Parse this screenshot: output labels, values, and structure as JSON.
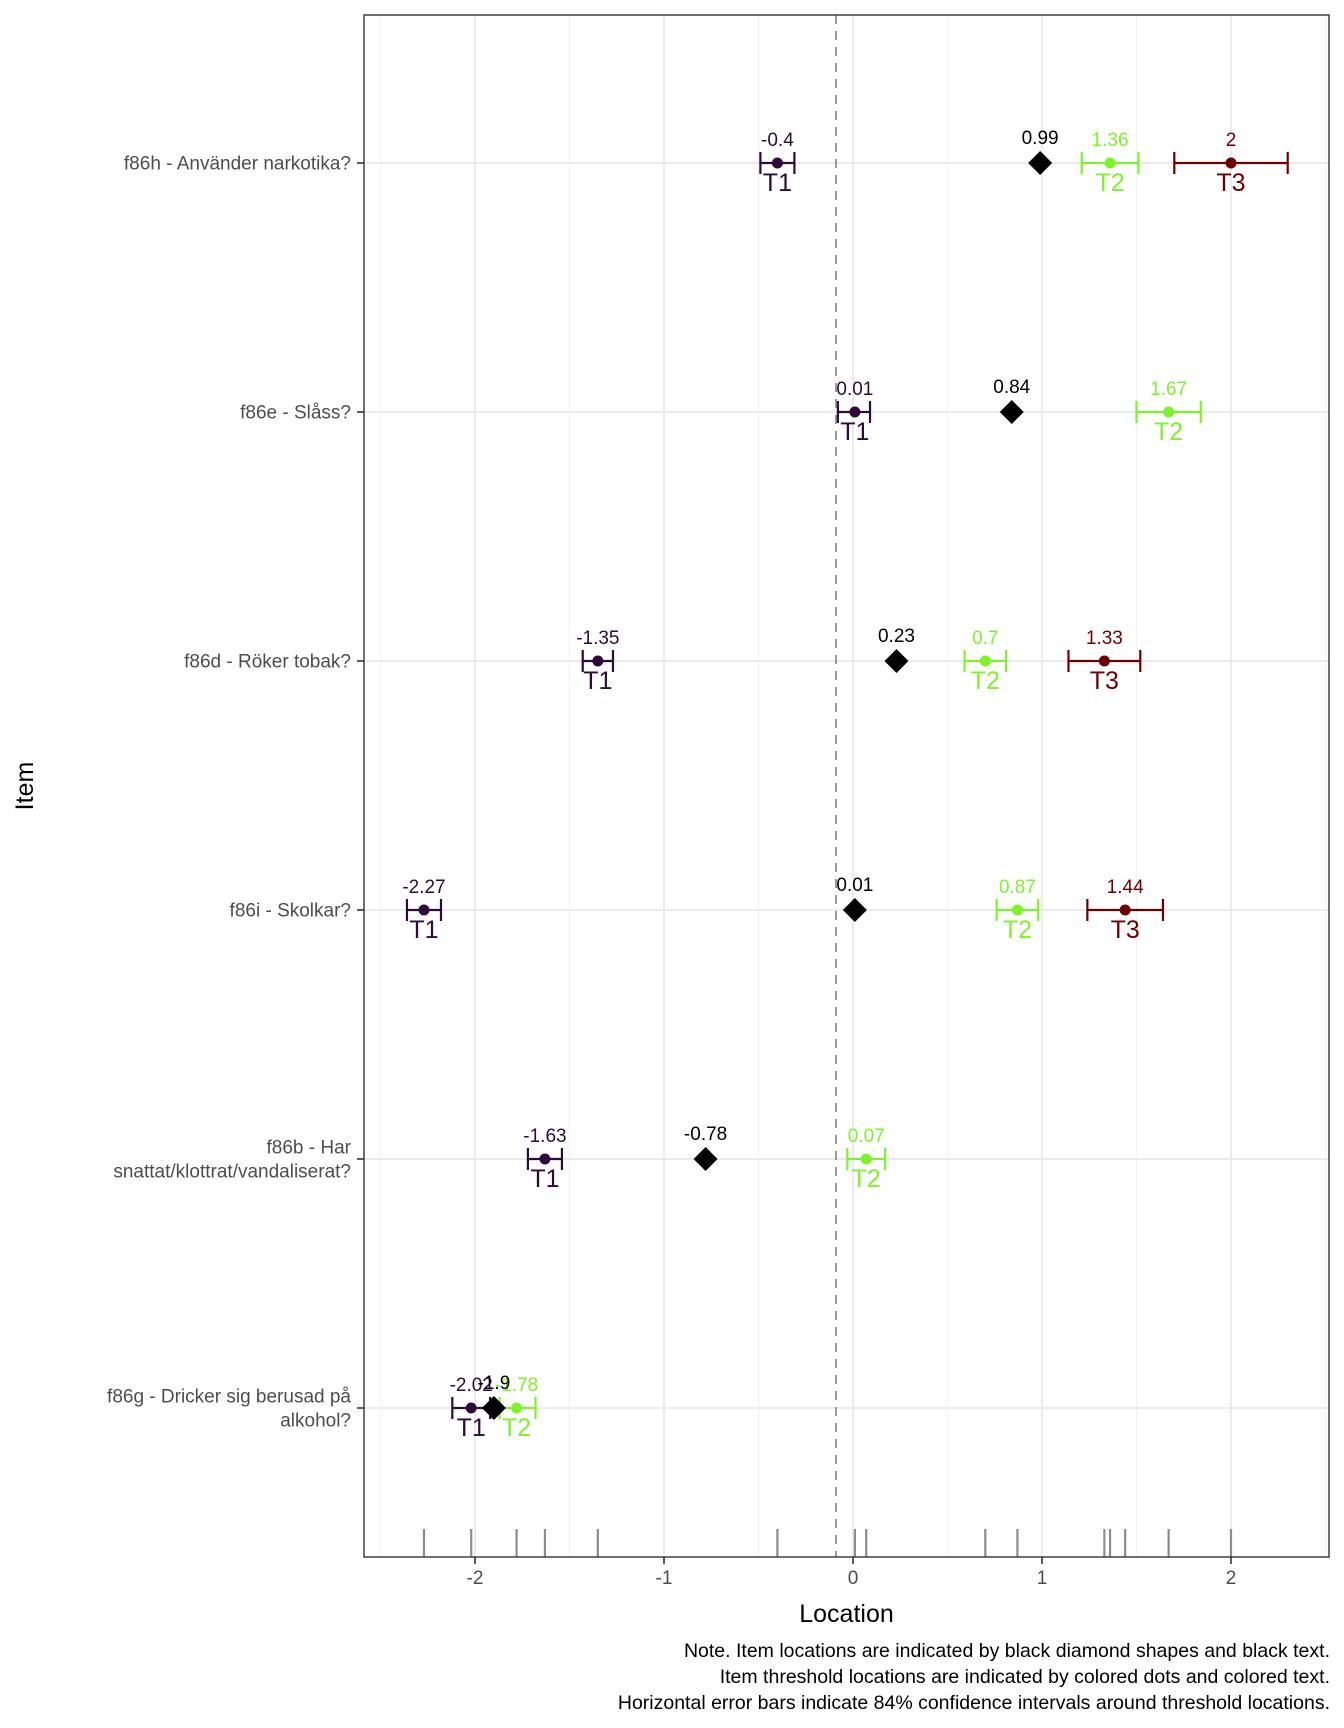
{
  "chart_data": {
    "type": "scatter",
    "xlabel": "Location",
    "ylabel": "Item",
    "xlim": [
      -2.5,
      2.5
    ],
    "x_ticks": [
      -2,
      -1,
      0,
      1,
      2
    ],
    "x_tick_labels": [
      "-2",
      "-1",
      "0",
      "1",
      "2"
    ],
    "reference_line_x": -0.09,
    "grid": true,
    "threshold_colors": {
      "T1": "#2d0a3a",
      "T2": "#7cf32a",
      "T3": "#6e0000"
    },
    "item_color": "#000000",
    "items": [
      {
        "label_lines": [
          "f86h - Använder narkotika?"
        ],
        "location": 0.99,
        "location_label": "0.99",
        "thresholds": [
          {
            "name": "T1",
            "value": -0.4,
            "label": "-0.4",
            "ci": [
              -0.49,
              -0.31
            ]
          },
          {
            "name": "T2",
            "value": 1.36,
            "label": "1.36",
            "ci": [
              1.21,
              1.51
            ]
          },
          {
            "name": "T3",
            "value": 2.0,
            "label": "2",
            "ci": [
              1.7,
              2.3
            ]
          }
        ]
      },
      {
        "label_lines": [
          "f86e - Slåss?"
        ],
        "location": 0.84,
        "location_label": "0.84",
        "thresholds": [
          {
            "name": "T1",
            "value": 0.01,
            "label": "0.01",
            "ci": [
              -0.08,
              0.09
            ]
          },
          {
            "name": "T2",
            "value": 1.67,
            "label": "1.67",
            "ci": [
              1.5,
              1.84
            ]
          }
        ]
      },
      {
        "label_lines": [
          "f86d - Röker tobak?"
        ],
        "location": 0.23,
        "location_label": "0.23",
        "thresholds": [
          {
            "name": "T1",
            "value": -1.35,
            "label": "-1.35",
            "ci": [
              -1.43,
              -1.27
            ]
          },
          {
            "name": "T2",
            "value": 0.7,
            "label": "0.7",
            "ci": [
              0.59,
              0.81
            ]
          },
          {
            "name": "T3",
            "value": 1.33,
            "label": "1.33",
            "ci": [
              1.14,
              1.52
            ]
          }
        ]
      },
      {
        "label_lines": [
          "f86i - Skolkar?"
        ],
        "location": 0.01,
        "location_label": "0.01",
        "thresholds": [
          {
            "name": "T1",
            "value": -2.27,
            "label": "-2.27",
            "ci": [
              -2.36,
              -2.18
            ]
          },
          {
            "name": "T2",
            "value": 0.87,
            "label": "0.87",
            "ci": [
              0.76,
              0.98
            ]
          },
          {
            "name": "T3",
            "value": 1.44,
            "label": "1.44",
            "ci": [
              1.24,
              1.64
            ]
          }
        ]
      },
      {
        "label_lines": [
          "f86b - Har",
          "snattat/klottrat/vandaliserat?"
        ],
        "location": -0.78,
        "location_label": "-0.78",
        "thresholds": [
          {
            "name": "T1",
            "value": -1.63,
            "label": "-1.63",
            "ci": [
              -1.72,
              -1.54
            ]
          },
          {
            "name": "T2",
            "value": 0.07,
            "label": "0.07",
            "ci": [
              -0.03,
              0.17
            ]
          }
        ]
      },
      {
        "label_lines": [
          "f86g - Dricker sig berusad på",
          "alkohol?"
        ],
        "location": -1.9,
        "location_label": "-1.9",
        "thresholds": [
          {
            "name": "T1",
            "value": -2.02,
            "label": "-2.02",
            "ci": [
              -2.12,
              -1.92
            ]
          },
          {
            "name": "T2",
            "value": -1.78,
            "label": "-1.78",
            "ci": [
              -1.87,
              -1.68
            ]
          }
        ]
      }
    ],
    "rug_values": [
      -2.27,
      -2.02,
      -1.78,
      -1.63,
      -1.35,
      -0.4,
      0.01,
      0.07,
      0.7,
      0.87,
      1.33,
      1.36,
      1.44,
      1.67,
      2.0
    ]
  },
  "notes": [
    "Note. Item locations are indicated by black diamond shapes and black text.",
    "Item threshold locations are indicated by colored dots and colored text.",
    "Horizontal error bars indicate 84% confidence intervals around threshold locations."
  ]
}
